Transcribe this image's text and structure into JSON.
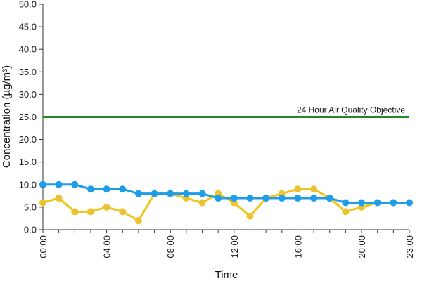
{
  "chart_data": {
    "type": "line",
    "xlabel": "Time",
    "ylabel": "Concentration (µg/m³)",
    "ylim": [
      0,
      50
    ],
    "yticks": [
      "0.0",
      "5.0",
      "10.0",
      "15.0",
      "20.0",
      "25.0",
      "30.0",
      "35.0",
      "40.0",
      "45.0",
      "50.0"
    ],
    "categories": [
      "00:00",
      "01:00",
      "02:00",
      "03:00",
      "04:00",
      "05:00",
      "06:00",
      "07:00",
      "08:00",
      "09:00",
      "10:00",
      "11:00",
      "12:00",
      "13:00",
      "14:00",
      "15:00",
      "16:00",
      "17:00",
      "18:00",
      "19:00",
      "20:00",
      "21:00",
      "22:00",
      "23:00"
    ],
    "xtick_labels": [
      "00:00",
      "04:00",
      "08:00",
      "12:00",
      "16:00",
      "20:00",
      "23:00"
    ],
    "grid": false,
    "series": [
      {
        "color": "#F0C419",
        "marker_fill": "#E8C33A",
        "values": [
          6,
          7,
          4,
          4,
          5,
          4,
          2,
          8,
          8,
          7,
          6,
          8,
          6,
          3,
          7,
          8,
          9,
          9,
          7,
          4,
          5,
          6,
          6,
          6
        ]
      },
      {
        "color": "#1E9DE8",
        "marker_fill": "#1E9DE8",
        "values": [
          10,
          10,
          10,
          9,
          9,
          9,
          8,
          8,
          8,
          8,
          8,
          7,
          7,
          7,
          7,
          7,
          7,
          7,
          7,
          6,
          6,
          6,
          6,
          6
        ]
      }
    ],
    "reference_line": {
      "value": 25,
      "label": "24 Hour Air Quality Objective",
      "color": "#1F8A1F"
    }
  }
}
